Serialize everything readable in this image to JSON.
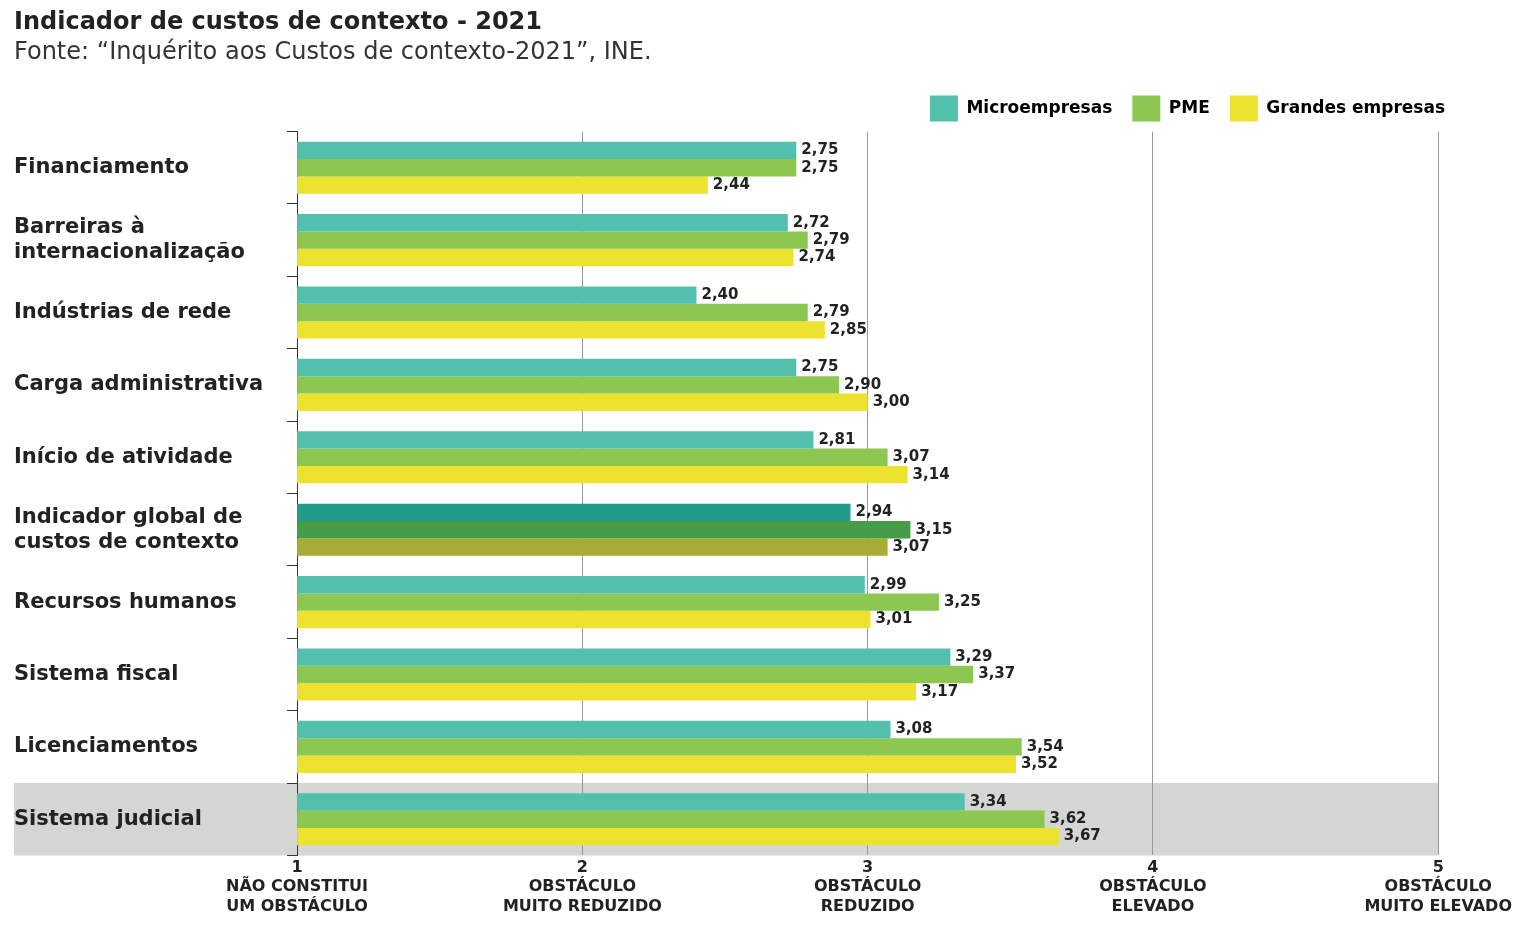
{
  "chart_data": {
    "type": "bar",
    "orientation": "horizontal",
    "title": "Indicador de custos de contexto - 2021",
    "subtitle": "Fonte: “Inquérito aos Custos de contexto-2021”, INE.",
    "categories": [
      "Financiamento",
      "Barreiras à internacionalização",
      "Indústrias de rede",
      "Carga administrativa",
      "Início de atividade",
      "Indicador global de custos de contexto",
      "Recursos humanos",
      "Sistema fiscal",
      "Licenciamentos",
      "Sistema judicial"
    ],
    "series": [
      {
        "name": "Microempresas",
        "color": "#52c0ad",
        "colors": [
          "#52c0ad",
          "#52c0ad",
          "#52c0ad",
          "#52c0ad",
          "#52c0ad",
          "#229c8a",
          "#52c0ad",
          "#52c0ad",
          "#52c0ad",
          "#52c0ad"
        ],
        "values": [
          2.75,
          2.72,
          2.4,
          2.75,
          2.81,
          2.94,
          2.99,
          3.29,
          3.08,
          3.34
        ],
        "value_labels": [
          "2,75",
          "2,72",
          "2,40",
          "2,75",
          "2,81",
          "2,94",
          "2,99",
          "3,29",
          "3,08",
          "3,34"
        ]
      },
      {
        "name": "PME",
        "color": "#8bc751",
        "colors": [
          "#8bc751",
          "#8bc751",
          "#8bc751",
          "#8bc751",
          "#8bc751",
          "#469c47",
          "#8bc751",
          "#8bc751",
          "#8bc751",
          "#8bc751"
        ],
        "values": [
          2.75,
          2.79,
          2.79,
          2.9,
          3.07,
          3.15,
          3.25,
          3.37,
          3.54,
          3.62
        ],
        "value_labels": [
          "2,75",
          "2,79",
          "2,79",
          "2,90",
          "3,07",
          "3,15",
          "3,25",
          "3,37",
          "3,54",
          "3,62"
        ]
      },
      {
        "name": "Grandes empresas",
        "color": "#ede22e",
        "colors": [
          "#ede22e",
          "#ede22e",
          "#ede22e",
          "#ede22e",
          "#ede22e",
          "#a8ab35",
          "#ede22e",
          "#ede22e",
          "#ede22e",
          "#ede22e"
        ],
        "values": [
          2.44,
          2.74,
          2.85,
          3.0,
          3.14,
          3.07,
          3.01,
          3.17,
          3.52,
          3.67
        ],
        "value_labels": [
          "2,44",
          "2,74",
          "2,85",
          "3,00",
          "3,14",
          "3,07",
          "3,01",
          "3,17",
          "3,52",
          "3,67"
        ]
      }
    ],
    "xlim": [
      1,
      5
    ],
    "xticks": [
      {
        "value": 1,
        "label": "1\nNÃO CONSTITUI\nUM OBSTÁCULO"
      },
      {
        "value": 2,
        "label": "2\nOBSTÁCULO\nMUITO REDUZIDO"
      },
      {
        "value": 3,
        "label": "3\nOBSTÁCULO\nREDUZIDO"
      },
      {
        "value": 4,
        "label": "4\nOBSTÁCULO\nELEVADO"
      },
      {
        "value": 5,
        "label": "5\nOBSTÁCULO\nMUITO ELEVADO"
      }
    ],
    "bands": [
      {
        "axis": "y",
        "from": "Sistema judicial",
        "to": "Sistema judicial",
        "color": "#d4d6d3"
      }
    ],
    "grid": "x",
    "legend": "top right"
  }
}
